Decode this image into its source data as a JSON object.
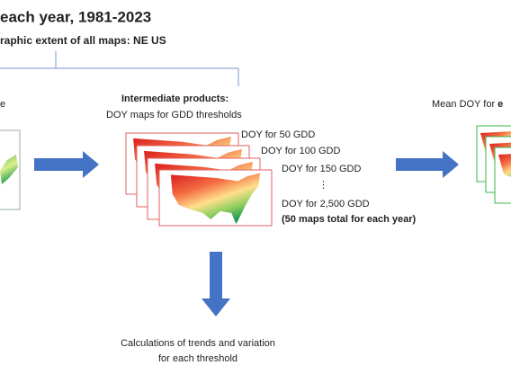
{
  "header": {
    "title": "each year, 1981-2023",
    "subtitle": "raphic  extent of all maps: NE US"
  },
  "left": {
    "label": "e"
  },
  "middle": {
    "title": "Intermediate products:",
    "subtitle": "DOY maps for GDD thresholds",
    "layers": [
      "DOY for 50 GDD",
      "DOY for 100 GDD",
      "DOY for 150 GDD",
      "⋮",
      "DOY for 2,500 GDD"
    ],
    "note": "(50 maps total for each year)"
  },
  "right": {
    "label": "Mean DOY for ",
    "label_bold": "e"
  },
  "bottom": {
    "lines": [
      "Calculations of trends and variation",
      "for each threshold"
    ]
  }
}
